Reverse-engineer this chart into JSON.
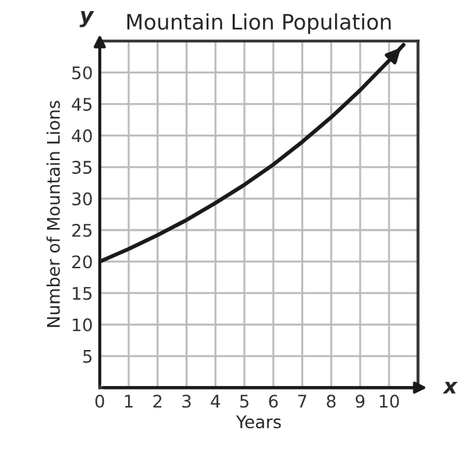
{
  "chart_data": {
    "type": "line",
    "title": "Mountain Lion Population",
    "xlabel": "Years",
    "ylabel": "Number of Mountain Lions",
    "annotations": [
      "x",
      "y"
    ],
    "x": [
      0,
      1,
      2,
      3,
      4,
      5,
      6,
      7,
      8,
      9,
      10,
      10.5
    ],
    "series": [
      {
        "color": "#1a1a1a",
        "values": [
          20,
          22,
          24.2,
          26.6,
          29.3,
          32.2,
          35.4,
          39,
          42.9,
          47.2,
          51.9,
          54.4
        ]
      }
    ],
    "xlim": [
      0,
      11
    ],
    "ylim": [
      0,
      55
    ],
    "xticks": [
      0,
      1,
      2,
      3,
      4,
      5,
      6,
      7,
      8,
      9,
      10,
      {
        "value": 11,
        "label": null
      }
    ],
    "yticks": [
      {
        "value": 0,
        "label": null
      },
      5,
      10,
      15,
      20,
      25,
      30,
      35,
      40,
      45,
      50,
      {
        "value": 55,
        "label": null
      }
    ],
    "grid": true,
    "marker": "none",
    "line_style": "solid",
    "legend": false
  }
}
